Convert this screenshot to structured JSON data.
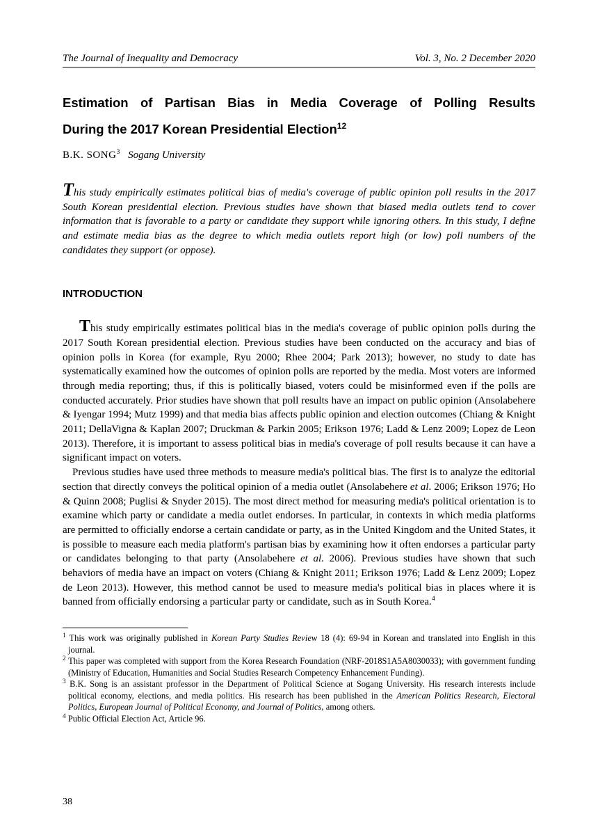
{
  "header": {
    "journal": "The Journal of Inequality and Democracy",
    "issue": "Vol. 3, No. 2  December 2020"
  },
  "title": {
    "line1": "Estimation of Partisan Bias in Media Coverage of Polling Results",
    "line2_pre": "During the 2017 Korean Presidential Election",
    "sup": "12"
  },
  "author": {
    "name": "B.K. SONG",
    "name_sup": "3",
    "affiliation": "Sogang University"
  },
  "abstract": {
    "lead": "T",
    "rest": "his study empirically estimates political bias of media's coverage of public opinion poll results in the 2017 South Korean presidential election. Previous studies have shown that biased media outlets tend to cover information that is favorable to a party or candidate they support while ignoring others. In this study, I define and estimate media bias as the degree to which media outlets report high (or low) poll numbers of the candidates they support (or oppose)."
  },
  "section_heading": "INTRODUCTION",
  "body": {
    "p1_lead": "T",
    "p1_rest": "his study empirically estimates political bias in the media's coverage of public opinion polls during the 2017 South Korean presidential election. Previous studies have been conducted on the accuracy and bias of opinion polls in Korea (for example, Ryu 2000; Rhee 2004; Park 2013); however, no study to date has systematically examined how the outcomes of opinion polls are reported by the media. Most voters are informed through media reporting; thus, if this is politically biased, voters could be misinformed even if the polls are conducted accurately. Prior studies have shown that poll results have an impact on public opinion (Ansolabehere & Iyengar 1994; Mutz 1999) and that media bias affects public opinion and election outcomes (Chiang & Knight 2011; DellaVigna & Kaplan 2007; Druckman & Parkin 2005; Erikson 1976; Ladd & Lenz 2009; Lopez de Leon 2013). Therefore, it is important to assess political bias in media's coverage of poll results because it can have a significant impact on voters.",
    "p2_pre": "Previous studies have used three methods to measure media's political bias. The first is to analyze the editorial section that directly conveys the political opinion of a media outlet (Ansolabehere ",
    "p2_etal1": "et al",
    "p2_mid": ". 2006; Erikson 1976; Ho & Quinn 2008; Puglisi & Snyder 2015). The most direct method for measuring media's political orientation is to examine which party or candidate a media outlet endorses. In particular, in contexts in which media platforms are permitted to officially endorse a certain candidate or party, as in the United Kingdom and the United States, it is possible to measure each media platform's partisan bias by examining how it often endorses a particular party or candidates belonging to that party (Ansolabehere ",
    "p2_etal2": "et al.",
    "p2_end_pre": " 2006). Previous studies have shown that such behaviors of media have an impact on voters (Chiang & Knight 2011; Erikson 1976; Ladd & Lenz 2009; Lopez de Leon 2013). However, this method cannot be used to measure media's political bias in places where it is banned from officially endorsing a particular party or candidate, such as in South Korea.",
    "p2_sup": "4"
  },
  "footnotes": {
    "f1_pre": " This work was originally published in ",
    "f1_it": "Korean Party Studies Review",
    "f1_post": " 18 (4): 69-94 in Korean and translated into English in this journal.",
    "f2": " This paper was completed with support from the Korea Research Foundation (NRF-2018S1A5A8030033); with government funding (Ministry of Education, Humanities and Social Studies Research Competency Enhancement Funding).",
    "f3_pre": " B.K. Song is an assistant professor in the Department of Political Science at Sogang University. His research interests include political economy, elections, and media politics. His research has been published in the ",
    "f3_it": "American Politics Research, Electoral Politics, European Journal of Political Economy, and Journal of Politics,",
    "f3_post": " among others.",
    "f4": " Public Official Election Act, Article 96."
  },
  "page_number": "38"
}
